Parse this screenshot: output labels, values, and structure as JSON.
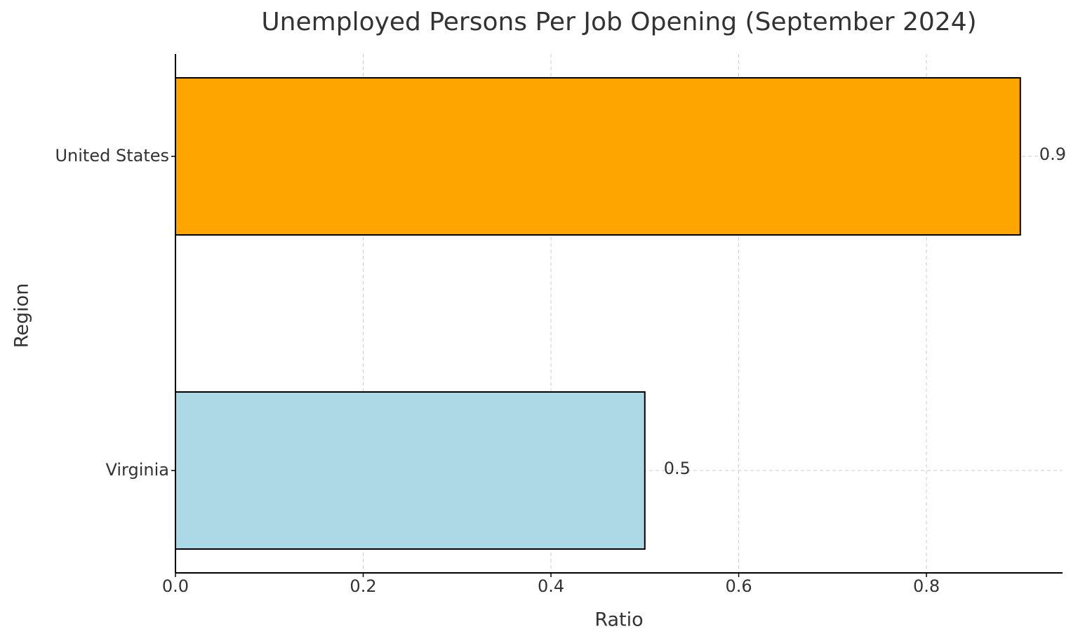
{
  "chart_data": {
    "type": "barh",
    "title": "Unemployed Persons Per Job Opening (September 2024)",
    "x_label": "Ratio",
    "y_label": "Region",
    "categories": [
      "Virginia",
      "United States"
    ],
    "values": [
      0.5,
      0.9
    ],
    "colors": [
      "#add8e6",
      "#ffa500"
    ],
    "xlim": [
      0,
      0.945
    ],
    "xticks": [
      {
        "value": 0,
        "label": "0.0"
      },
      0.2,
      0.4,
      0.6,
      0.8
    ],
    "grid": true
  }
}
